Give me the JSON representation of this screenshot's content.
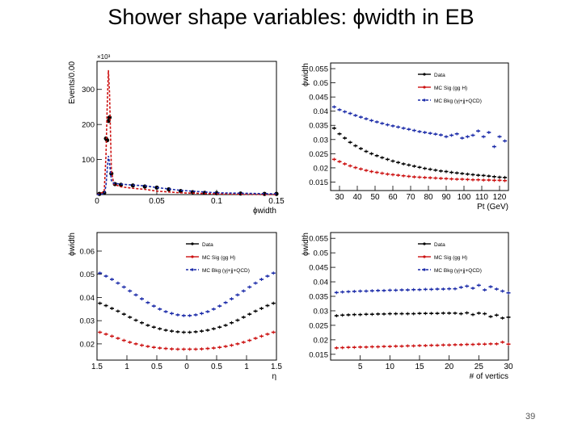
{
  "slide": {
    "title": "Shower shape variables:  ϕwidth in EB",
    "page_number": "39"
  },
  "legend_entries": [
    "Data",
    "MC Sig (gg H)",
    "MC Bkg (γj+jj+QCD)"
  ],
  "colors": {
    "data": "#000000",
    "mc_sig": "#cc1111",
    "mc_bkg": "#1a2aa8"
  },
  "chart_data": [
    {
      "type": "line",
      "title": "",
      "xlabel": "ϕwidth",
      "ylabel": "Events/0.00",
      "y_exponent": "×10³",
      "xlim": [
        0,
        0.15
      ],
      "ylim": [
        0,
        380
      ],
      "xticks": [
        0,
        0.05,
        0.1,
        0.15
      ],
      "xtick_labels": [
        "0",
        "0.05",
        "0.1",
        "0.15"
      ],
      "yticks": [
        100,
        200,
        300
      ],
      "ytick_labels": [
        "100",
        "200",
        "300"
      ],
      "legend": false,
      "series": [
        {
          "name": "Data",
          "style": "markers",
          "x": [
            0.002,
            0.006,
            0.0075,
            0.0085,
            0.0095,
            0.0105,
            0.012,
            0.015,
            0.02,
            0.03,
            0.04,
            0.05,
            0.06,
            0.07,
            0.08,
            0.09,
            0.1,
            0.12,
            0.14,
            0.15
          ],
          "y": [
            2,
            5,
            160,
            155,
            210,
            220,
            60,
            30,
            28,
            26,
            23,
            20,
            15,
            10,
            7,
            5,
            4,
            3,
            2,
            2
          ]
        },
        {
          "name": "MC Sig (gg H)",
          "style": "dashed",
          "x": [
            0,
            0.006,
            0.0075,
            0.0085,
            0.0095,
            0.0105,
            0.012,
            0.014,
            0.02,
            0.03,
            0.04,
            0.05,
            0.07,
            0.1,
            0.15
          ],
          "y": [
            0,
            8,
            110,
            250,
            355,
            290,
            70,
            30,
            22,
            18,
            15,
            10,
            5,
            2,
            0
          ]
        },
        {
          "name": "MC Bkg (γj+jj+QCD)",
          "style": "dashed",
          "x": [
            0,
            0.006,
            0.0075,
            0.0085,
            0.0095,
            0.0105,
            0.012,
            0.014,
            0.02,
            0.03,
            0.04,
            0.05,
            0.07,
            0.1,
            0.15
          ],
          "y": [
            0,
            2,
            25,
            70,
            110,
            90,
            40,
            32,
            30,
            27,
            25,
            20,
            12,
            5,
            2
          ]
        }
      ]
    },
    {
      "type": "scatter",
      "title": "",
      "xlabel": "Pt (GeV)",
      "ylabel": "ϕwidth",
      "xlim": [
        25,
        125
      ],
      "ylim": [
        0.012,
        0.057
      ],
      "xticks": [
        30,
        40,
        50,
        60,
        70,
        80,
        90,
        100,
        110,
        120
      ],
      "xtick_labels": [
        "30",
        "40",
        "50",
        "60",
        "70",
        "80",
        "90",
        "100",
        "110",
        "120"
      ],
      "yticks": [
        0.015,
        0.02,
        0.025,
        0.03,
        0.035,
        0.04,
        0.045,
        0.05,
        0.055
      ],
      "ytick_labels": [
        "0.015",
        "0.02",
        "0.025",
        "0.03",
        "0.035",
        "0.04",
        "0.045",
        "0.05",
        "0.055"
      ],
      "legend": "top-right",
      "series": [
        {
          "name": "Data",
          "x": [
            27,
            30,
            33,
            36,
            39,
            42,
            45,
            48,
            51,
            54,
            57,
            60,
            63,
            66,
            69,
            72,
            75,
            78,
            81,
            84,
            87,
            90,
            93,
            96,
            99,
            102,
            105,
            108,
            111,
            114,
            117,
            120,
            123
          ],
          "y": [
            0.034,
            0.032,
            0.0305,
            0.029,
            0.0278,
            0.0268,
            0.0258,
            0.025,
            0.0243,
            0.0236,
            0.023,
            0.0224,
            0.0219,
            0.0214,
            0.021,
            0.0206,
            0.0202,
            0.0198,
            0.0195,
            0.0192,
            0.0189,
            0.0187,
            0.0184,
            0.0182,
            0.018,
            0.0178,
            0.0176,
            0.0174,
            0.0173,
            0.0171,
            0.0169,
            0.0167,
            0.0166
          ]
        },
        {
          "name": "MC Sig (gg H)",
          "x": [
            27,
            30,
            33,
            36,
            39,
            42,
            45,
            48,
            51,
            54,
            57,
            60,
            63,
            66,
            69,
            72,
            75,
            78,
            81,
            84,
            87,
            90,
            93,
            96,
            99,
            102,
            105,
            108,
            111,
            114,
            117,
            120,
            123
          ],
          "y": [
            0.023,
            0.0222,
            0.0214,
            0.0207,
            0.0201,
            0.0196,
            0.0191,
            0.0187,
            0.0184,
            0.0181,
            0.0178,
            0.0176,
            0.0174,
            0.0172,
            0.017,
            0.0168,
            0.0167,
            0.0166,
            0.0165,
            0.0164,
            0.0163,
            0.0162,
            0.0161,
            0.016,
            0.016,
            0.0159,
            0.0158,
            0.0158,
            0.0157,
            0.0157,
            0.0156,
            0.0156,
            0.0155
          ]
        },
        {
          "name": "MC Bkg (γj+jj+QCD)",
          "x": [
            27,
            30,
            33,
            36,
            39,
            42,
            45,
            48,
            51,
            54,
            57,
            60,
            63,
            66,
            69,
            72,
            75,
            78,
            81,
            84,
            87,
            90,
            93,
            96,
            99,
            102,
            105,
            108,
            111,
            114,
            117,
            120,
            123
          ],
          "y": [
            0.0415,
            0.0405,
            0.0398,
            0.0392,
            0.0385,
            0.0379,
            0.0373,
            0.0367,
            0.0362,
            0.0357,
            0.0352,
            0.0348,
            0.0344,
            0.034,
            0.0336,
            0.0332,
            0.0328,
            0.0325,
            0.0322,
            0.0319,
            0.0316,
            0.031,
            0.0315,
            0.032,
            0.0305,
            0.031,
            0.0315,
            0.033,
            0.031,
            0.0325,
            0.0275,
            0.031,
            0.0295
          ]
        }
      ]
    },
    {
      "type": "scatter",
      "title": "",
      "xlabel": "η",
      "ylabel": "ϕwidth",
      "xlim": [
        -1.5,
        1.5
      ],
      "ylim": [
        0.013,
        0.068
      ],
      "xticks": [
        -1.5,
        -1,
        -0.5,
        0,
        0.5,
        1,
        1.5
      ],
      "xtick_labels": [
        "1.5",
        "1",
        "0.5",
        "0",
        "0.5",
        "1",
        "1.5"
      ],
      "yticks": [
        0.02,
        0.03,
        0.04,
        0.05,
        0.06
      ],
      "ytick_labels": [
        "0.02",
        "0.03",
        "0.04",
        "0.05",
        "0.06"
      ],
      "legend": "top-right",
      "series": [
        {
          "name": "Data",
          "x": [
            -1.45,
            -1.35,
            -1.25,
            -1.15,
            -1.05,
            -0.95,
            -0.85,
            -0.75,
            -0.65,
            -0.55,
            -0.45,
            -0.35,
            -0.25,
            -0.15,
            -0.05,
            0.05,
            0.15,
            0.25,
            0.35,
            0.45,
            0.55,
            0.65,
            0.75,
            0.85,
            0.95,
            1.05,
            1.15,
            1.25,
            1.35,
            1.45
          ],
          "y": [
            0.0375,
            0.0365,
            0.0353,
            0.0341,
            0.0328,
            0.0315,
            0.0302,
            0.0291,
            0.028,
            0.0272,
            0.0265,
            0.0259,
            0.0255,
            0.0252,
            0.025,
            0.025,
            0.0252,
            0.0255,
            0.0259,
            0.0265,
            0.0272,
            0.028,
            0.0291,
            0.0302,
            0.0315,
            0.0328,
            0.0341,
            0.0353,
            0.0365,
            0.0375
          ]
        },
        {
          "name": "MC Sig (gg H)",
          "x": [
            -1.45,
            -1.35,
            -1.25,
            -1.15,
            -1.05,
            -0.95,
            -0.85,
            -0.75,
            -0.65,
            -0.55,
            -0.45,
            -0.35,
            -0.25,
            -0.15,
            -0.05,
            0.05,
            0.15,
            0.25,
            0.35,
            0.45,
            0.55,
            0.65,
            0.75,
            0.85,
            0.95,
            1.05,
            1.15,
            1.25,
            1.35,
            1.45
          ],
          "y": [
            0.025,
            0.0242,
            0.0233,
            0.0224,
            0.0215,
            0.0207,
            0.02,
            0.0194,
            0.0189,
            0.0185,
            0.0182,
            0.018,
            0.0178,
            0.0177,
            0.0177,
            0.0177,
            0.0177,
            0.0178,
            0.018,
            0.0182,
            0.0185,
            0.0189,
            0.0194,
            0.02,
            0.0207,
            0.0215,
            0.0224,
            0.0233,
            0.0242,
            0.025
          ]
        },
        {
          "name": "MC Bkg (γj+jj+QCD)",
          "x": [
            -1.45,
            -1.35,
            -1.25,
            -1.15,
            -1.05,
            -0.95,
            -0.85,
            -0.75,
            -0.65,
            -0.55,
            -0.45,
            -0.35,
            -0.25,
            -0.15,
            -0.05,
            0.05,
            0.15,
            0.25,
            0.35,
            0.45,
            0.55,
            0.65,
            0.75,
            0.85,
            0.95,
            1.05,
            1.15,
            1.25,
            1.35,
            1.45
          ],
          "y": [
            0.0505,
            0.0492,
            0.0478,
            0.0462,
            0.0445,
            0.0428,
            0.0411,
            0.0394,
            0.0378,
            0.0363,
            0.035,
            0.0339,
            0.0331,
            0.0325,
            0.0322,
            0.0322,
            0.0325,
            0.0331,
            0.0339,
            0.035,
            0.0363,
            0.0378,
            0.0394,
            0.0411,
            0.0428,
            0.0445,
            0.0462,
            0.0478,
            0.0492,
            0.0505
          ]
        }
      ]
    },
    {
      "type": "scatter",
      "title": "",
      "xlabel": "# of vertics",
      "ylabel": "ϕwidth",
      "xlim": [
        0,
        30
      ],
      "ylim": [
        0.013,
        0.057
      ],
      "xticks": [
        5,
        10,
        15,
        20,
        25,
        30
      ],
      "xtick_labels": [
        "5",
        "10",
        "15",
        "20",
        "25",
        "30"
      ],
      "yticks": [
        0.015,
        0.02,
        0.025,
        0.03,
        0.035,
        0.04,
        0.045,
        0.05,
        0.055
      ],
      "ytick_labels": [
        "0.015",
        "0.02",
        "0.025",
        "0.03",
        "0.035",
        "0.04",
        "0.045",
        "0.05",
        "0.055"
      ],
      "legend": "top-right",
      "series": [
        {
          "name": "Data",
          "x": [
            1,
            2,
            3,
            4,
            5,
            6,
            7,
            8,
            9,
            10,
            11,
            12,
            13,
            14,
            15,
            16,
            17,
            18,
            19,
            20,
            21,
            22,
            23,
            24,
            25,
            26,
            27,
            28,
            29,
            30
          ],
          "y": [
            0.0283,
            0.0285,
            0.0286,
            0.0287,
            0.0287,
            0.0288,
            0.0288,
            0.0289,
            0.0289,
            0.029,
            0.029,
            0.029,
            0.029,
            0.029,
            0.0291,
            0.0291,
            0.0291,
            0.0291,
            0.0292,
            0.0292,
            0.0292,
            0.029,
            0.0293,
            0.0287,
            0.0292,
            0.029,
            0.028,
            0.0285,
            0.0275,
            0.0278
          ]
        },
        {
          "name": "MC Sig (gg H)",
          "x": [
            1,
            2,
            3,
            4,
            5,
            6,
            7,
            8,
            9,
            10,
            11,
            12,
            13,
            14,
            15,
            16,
            17,
            18,
            19,
            20,
            21,
            22,
            23,
            24,
            25,
            26,
            27,
            28,
            29,
            30
          ],
          "y": [
            0.0172,
            0.0173,
            0.0174,
            0.0174,
            0.0175,
            0.0175,
            0.0176,
            0.0176,
            0.0177,
            0.0177,
            0.0178,
            0.0178,
            0.0179,
            0.0179,
            0.018,
            0.018,
            0.0181,
            0.0181,
            0.0182,
            0.0182,
            0.0183,
            0.0183,
            0.0184,
            0.0184,
            0.0185,
            0.0185,
            0.0186,
            0.0186,
            0.0192,
            0.0185
          ]
        },
        {
          "name": "MC Bkg (γj+jj+QCD)",
          "x": [
            1,
            2,
            3,
            4,
            5,
            6,
            7,
            8,
            9,
            10,
            11,
            12,
            13,
            14,
            15,
            16,
            17,
            18,
            19,
            20,
            21,
            22,
            23,
            24,
            25,
            26,
            27,
            28,
            29,
            30
          ],
          "y": [
            0.0363,
            0.0365,
            0.0366,
            0.0367,
            0.0368,
            0.0368,
            0.0369,
            0.037,
            0.037,
            0.0371,
            0.0371,
            0.0372,
            0.0372,
            0.0373,
            0.0373,
            0.0374,
            0.0374,
            0.0375,
            0.0375,
            0.0376,
            0.0376,
            0.0381,
            0.0385,
            0.0378,
            0.0388,
            0.0372,
            0.0383,
            0.0375,
            0.0368,
            0.0362
          ]
        }
      ]
    }
  ]
}
